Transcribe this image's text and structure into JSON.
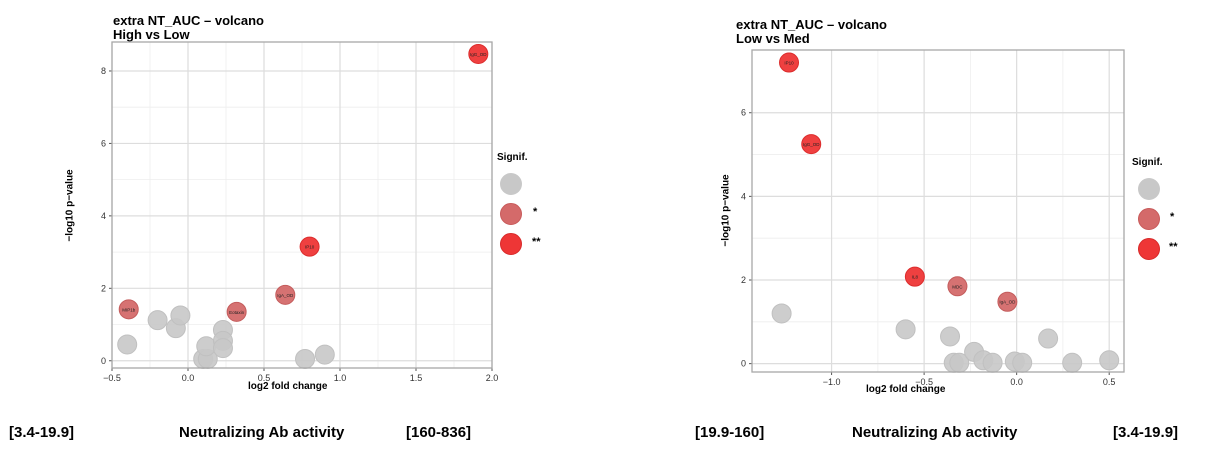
{
  "colors": {
    "nonsig": "#c8c8c8",
    "sig1": "#d46a6a",
    "sig2": "#ee3636"
  },
  "chart_data": [
    {
      "type": "scatter",
      "title": "extra NT_AUC – volcano",
      "subtitle": "High vs Low",
      "xlabel": "log2 fold change",
      "ylabel": "−log10 p−value",
      "xlim": [
        -0.5,
        2.0
      ],
      "ylim": [
        -0.2,
        8.8
      ],
      "xticks": [
        -0.5,
        0.0,
        0.5,
        1.0,
        1.5,
        2.0
      ],
      "xtick_labels": [
        "−0.5",
        "0.0",
        "0.5",
        "1.0",
        "1.5",
        "2.0"
      ],
      "yticks": [
        0,
        2,
        4,
        6,
        8
      ],
      "ytick_labels": [
        "0",
        "2",
        "4",
        "6",
        "8"
      ],
      "legend_title": "Signif.",
      "legend": [
        "",
        "*",
        "**"
      ],
      "points": [
        {
          "x": 1.91,
          "y": 8.47,
          "sig": 2,
          "label": "IgG_OD"
        },
        {
          "x": 0.8,
          "y": 3.15,
          "sig": 2,
          "label": "IP10"
        },
        {
          "x": 0.64,
          "y": 1.82,
          "sig": 1,
          "label": "IgA_OD"
        },
        {
          "x": 0.32,
          "y": 1.35,
          "sig": 1,
          "label": "Eotaxin"
        },
        {
          "x": -0.39,
          "y": 1.42,
          "sig": 1,
          "label": "MIP1b"
        },
        {
          "x": -0.4,
          "y": 0.45,
          "sig": 0,
          "label": ""
        },
        {
          "x": -0.2,
          "y": 1.12,
          "sig": 0,
          "label": ""
        },
        {
          "x": -0.08,
          "y": 0.9,
          "sig": 0,
          "label": ""
        },
        {
          "x": -0.05,
          "y": 1.25,
          "sig": 0,
          "label": ""
        },
        {
          "x": 0.1,
          "y": 0.05,
          "sig": 0,
          "label": ""
        },
        {
          "x": 0.13,
          "y": 0.05,
          "sig": 0,
          "label": ""
        },
        {
          "x": 0.12,
          "y": 0.4,
          "sig": 0,
          "label": ""
        },
        {
          "x": 0.23,
          "y": 0.85,
          "sig": 0,
          "label": ""
        },
        {
          "x": 0.23,
          "y": 0.55,
          "sig": 0,
          "label": ""
        },
        {
          "x": 0.23,
          "y": 0.35,
          "sig": 0,
          "label": ""
        },
        {
          "x": 0.77,
          "y": 0.05,
          "sig": 0,
          "label": ""
        },
        {
          "x": 0.9,
          "y": 0.17,
          "sig": 0,
          "label": ""
        }
      ]
    },
    {
      "type": "scatter",
      "title": "extra NT_AUC – volcano",
      "subtitle": "Low vs Med",
      "xlabel": "log2 fold change",
      "ylabel": "−log10 p−value",
      "xlim": [
        -1.43,
        0.58
      ],
      "ylim": [
        -0.2,
        7.5
      ],
      "xticks": [
        -1.0,
        -0.5,
        0.0,
        0.5
      ],
      "xtick_labels": [
        "−1.0",
        "−0.5",
        "0.0",
        "0.5"
      ],
      "yticks": [
        0,
        2,
        4,
        6
      ],
      "ytick_labels": [
        "0",
        "2",
        "4",
        "6"
      ],
      "legend_title": "Signif.",
      "legend": [
        "",
        "*",
        "**"
      ],
      "points": [
        {
          "x": -1.23,
          "y": 7.2,
          "sig": 2,
          "label": "IP10"
        },
        {
          "x": -1.11,
          "y": 5.25,
          "sig": 2,
          "label": "IgG_OD"
        },
        {
          "x": -0.55,
          "y": 2.08,
          "sig": 2,
          "label": "IL8"
        },
        {
          "x": -0.32,
          "y": 1.85,
          "sig": 1,
          "label": "MDC"
        },
        {
          "x": -0.05,
          "y": 1.48,
          "sig": 1,
          "label": "IgA_OD"
        },
        {
          "x": -1.27,
          "y": 1.2,
          "sig": 0,
          "label": ""
        },
        {
          "x": -0.6,
          "y": 0.82,
          "sig": 0,
          "label": ""
        },
        {
          "x": -0.36,
          "y": 0.65,
          "sig": 0,
          "label": ""
        },
        {
          "x": -0.34,
          "y": 0.02,
          "sig": 0,
          "label": ""
        },
        {
          "x": -0.31,
          "y": 0.02,
          "sig": 0,
          "label": ""
        },
        {
          "x": -0.23,
          "y": 0.28,
          "sig": 0,
          "label": ""
        },
        {
          "x": -0.18,
          "y": 0.08,
          "sig": 0,
          "label": ""
        },
        {
          "x": -0.13,
          "y": 0.02,
          "sig": 0,
          "label": ""
        },
        {
          "x": -0.01,
          "y": 0.05,
          "sig": 0,
          "label": ""
        },
        {
          "x": 0.03,
          "y": 0.02,
          "sig": 0,
          "label": ""
        },
        {
          "x": 0.17,
          "y": 0.6,
          "sig": 0,
          "label": ""
        },
        {
          "x": 0.3,
          "y": 0.02,
          "sig": 0,
          "label": ""
        },
        {
          "x": 0.5,
          "y": 0.08,
          "sig": 0,
          "label": ""
        }
      ]
    }
  ],
  "bottom": {
    "left": {
      "range_a": "[3.4-19.9]",
      "title": "Neutralizing Ab activity",
      "range_b": "[160-836]"
    },
    "right": {
      "range_a": "[19.9-160]",
      "title": "Neutralizing Ab activity",
      "range_b": "[3.4-19.9]"
    }
  }
}
